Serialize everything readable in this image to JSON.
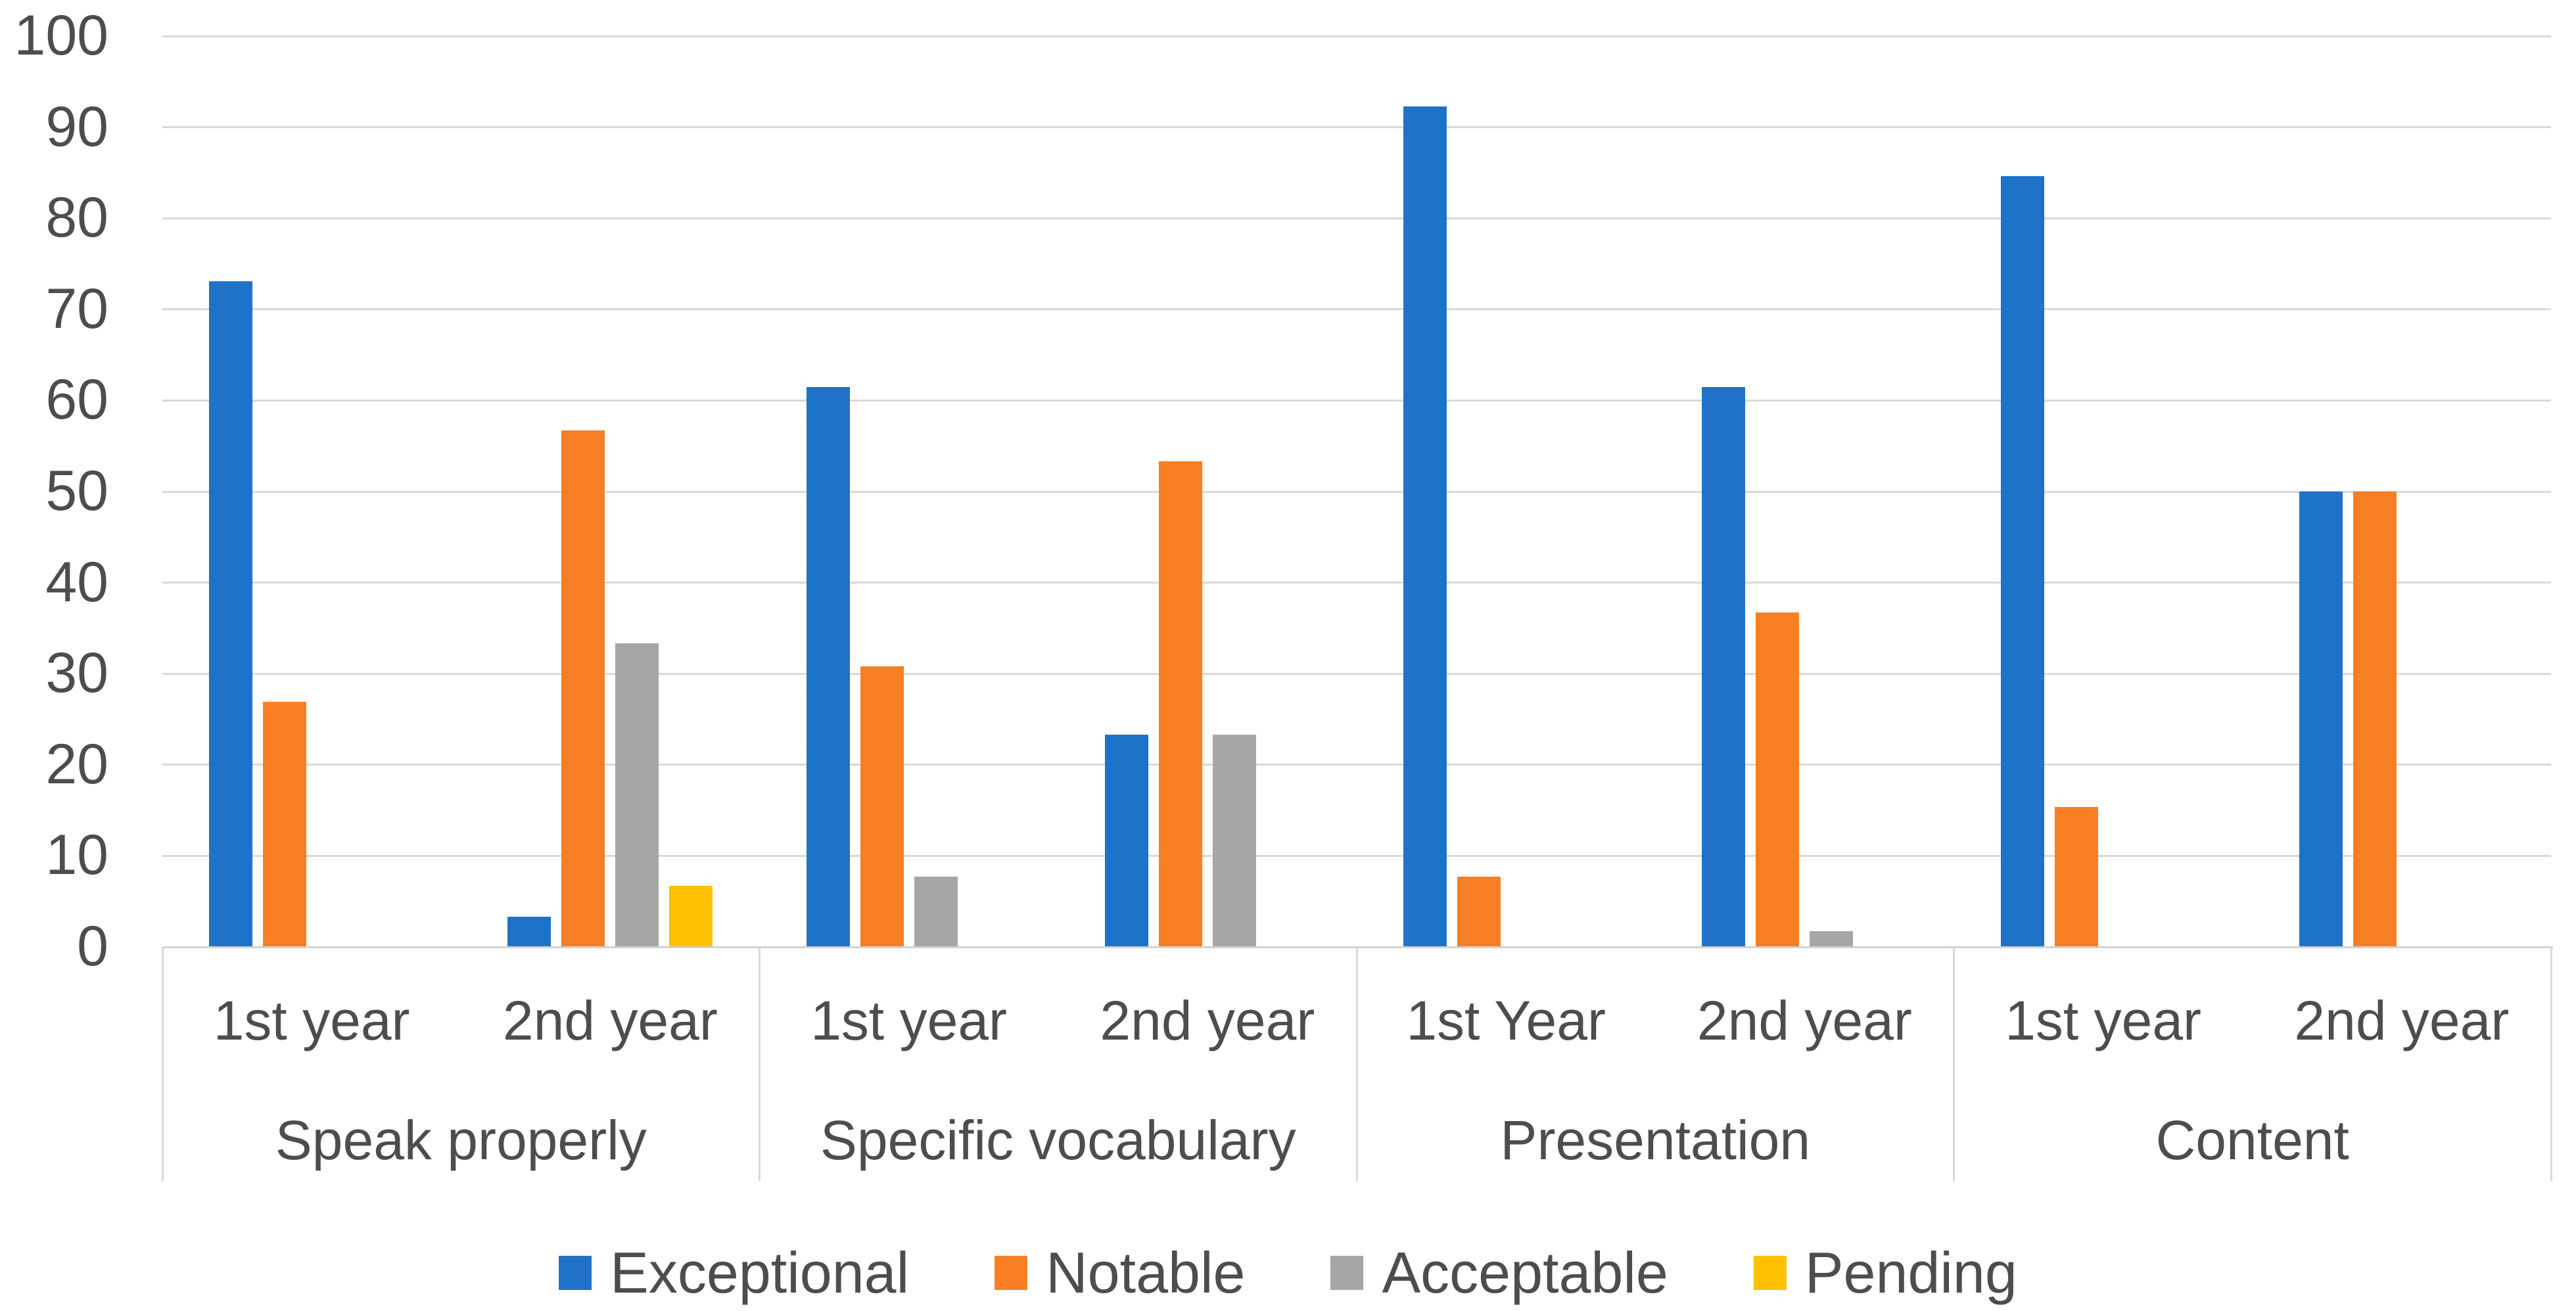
{
  "chart_data": {
    "type": "bar",
    "title": "",
    "xlabel": "",
    "ylabel": "",
    "y_axis": {
      "min": 0,
      "max": 100,
      "step": 10,
      "tick_labels": [
        "100",
        "90",
        "80",
        "70",
        "60",
        "50",
        "40",
        "30",
        "20",
        "10",
        "0"
      ]
    },
    "grid": "on",
    "legend_position": "bottom",
    "series_names": [
      "Exceptional",
      "Notable",
      "Acceptable",
      "Pending"
    ],
    "legend": [
      {
        "label": "Exceptional",
        "color": "#1e73c8"
      },
      {
        "label": "Notable",
        "color": "#f87e23"
      },
      {
        "label": "Acceptable",
        "color": "#a6a6a6"
      },
      {
        "label": "Pending",
        "color": "#ffc000"
      }
    ],
    "groups": [
      {
        "label": "Speak properly",
        "categories": [
          {
            "label": "1st year",
            "values": [
              73.1,
              26.9,
              0,
              0
            ]
          },
          {
            "label": "2nd year",
            "values": [
              3.3,
              56.7,
              33.3,
              6.7
            ]
          }
        ]
      },
      {
        "label": "Specific vocabulary",
        "categories": [
          {
            "label": "1st year",
            "values": [
              61.5,
              30.8,
              7.7,
              0
            ]
          },
          {
            "label": "2nd year",
            "values": [
              23.3,
              53.3,
              23.3,
              0
            ]
          }
        ]
      },
      {
        "label": "Presentation",
        "categories": [
          {
            "label": "1st Year",
            "values": [
              92.3,
              7.7,
              0,
              0
            ]
          },
          {
            "label": "2nd year",
            "values": [
              61.5,
              36.7,
              1.7,
              0
            ]
          }
        ]
      },
      {
        "label": "Content",
        "categories": [
          {
            "label": "1st year",
            "values": [
              84.6,
              15.4,
              0,
              0
            ]
          },
          {
            "label": "2nd year",
            "values": [
              50,
              50,
              0,
              0
            ]
          }
        ]
      }
    ]
  },
  "colors": {
    "gridline": "#d9d9d9",
    "axis_line": "#d2d2d2",
    "text": "#4d4d4d",
    "background": "#ffffff"
  }
}
